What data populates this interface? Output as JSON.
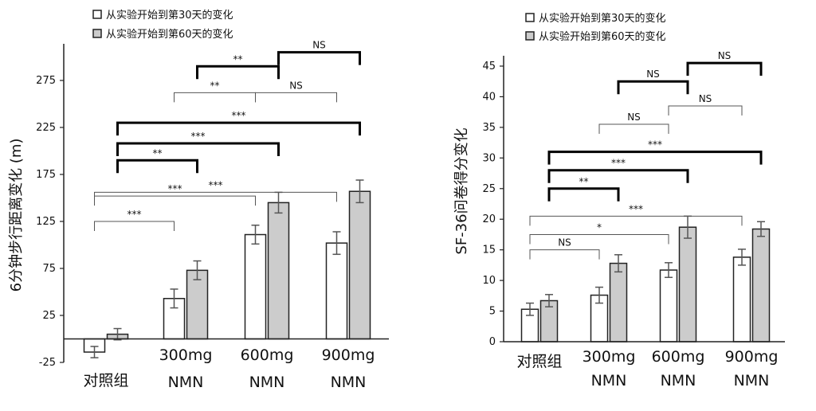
{
  "chart_data": [
    {
      "type": "bar",
      "ylabel": "6分钟步行距离变化 (m)",
      "categories": [
        [
          "对照组"
        ],
        [
          "300mg",
          "NMN"
        ],
        [
          "600mg",
          "NMN"
        ],
        [
          "900mg",
          "NMN"
        ]
      ],
      "ylim": [
        -25,
        300
      ],
      "yticks": [
        -25,
        25,
        75,
        125,
        175,
        225,
        275
      ],
      "legend_position": "top",
      "series": [
        {
          "name": "从实验开始到第30天的变化",
          "color": "#ffffff",
          "values": [
            -14,
            43,
            111,
            102
          ],
          "errors": [
            6,
            10,
            10,
            12
          ]
        },
        {
          "name": "从实验开始到第60天的变化",
          "color": "#cccccc",
          "values": [
            5,
            73,
            145,
            157
          ],
          "errors": [
            6,
            10,
            11,
            12
          ]
        }
      ],
      "comparisons": [
        {
          "label": "***",
          "from": 0,
          "to": 1,
          "level": 125,
          "series": "30d",
          "bold": false
        },
        {
          "label": "***",
          "from": 0,
          "to": 2,
          "level": 152,
          "series": "30d",
          "bold": false
        },
        {
          "label": "***",
          "from": 0,
          "to": 3,
          "level": 156,
          "series": "30d",
          "bold": false
        },
        {
          "label": "**",
          "from": 0,
          "to": 1,
          "level": 190,
          "series": "60d",
          "bold": true
        },
        {
          "label": "***",
          "from": 0,
          "to": 2,
          "level": 208,
          "series": "60d",
          "bold": true
        },
        {
          "label": "***",
          "from": 0,
          "to": 3,
          "level": 230,
          "series": "60d",
          "bold": true
        },
        {
          "label": "**",
          "from": 1,
          "to": 2,
          "level": 262,
          "series": "30d",
          "bold": false
        },
        {
          "label": "NS",
          "from": 2,
          "to": 3,
          "level": 262,
          "series": "30d",
          "bold": false
        },
        {
          "label": "**",
          "from": 1,
          "to": 2,
          "level": 290,
          "series": "60d",
          "bold": true
        },
        {
          "label": "NS",
          "from": 2,
          "to": 3,
          "level": 305,
          "series": "60d",
          "bold": true
        }
      ]
    },
    {
      "type": "bar",
      "ylabel": "SF-36问卷得分变化",
      "categories": [
        [
          "对照组"
        ],
        [
          "300mg",
          "NMN"
        ],
        [
          "600mg",
          "NMN"
        ],
        [
          "900mg",
          "NMN"
        ]
      ],
      "ylim": [
        0,
        45
      ],
      "yticks": [
        0,
        5,
        10,
        15,
        20,
        25,
        30,
        35,
        40,
        45
      ],
      "legend_position": "top",
      "series": [
        {
          "name": "从实验开始到第30天的变化",
          "color": "#ffffff",
          "values": [
            5.3,
            7.6,
            11.7,
            13.8
          ],
          "errors": [
            1.0,
            1.3,
            1.2,
            1.3
          ]
        },
        {
          "name": "从实验开始到第60天的变化",
          "color": "#cccccc",
          "values": [
            6.7,
            12.8,
            18.7,
            18.4
          ],
          "errors": [
            1.0,
            1.4,
            1.8,
            1.2
          ]
        }
      ],
      "comparisons": [
        {
          "label": "NS",
          "from": 0,
          "to": 1,
          "level": 15,
          "series": "30d",
          "bold": false
        },
        {
          "label": "*",
          "from": 0,
          "to": 2,
          "level": 17.5,
          "series": "30d",
          "bold": false
        },
        {
          "label": "***",
          "from": 0,
          "to": 3,
          "level": 20.5,
          "series": "30d",
          "bold": false
        },
        {
          "label": "**",
          "from": 0,
          "to": 1,
          "level": 25,
          "series": "60d",
          "bold": true
        },
        {
          "label": "***",
          "from": 0,
          "to": 2,
          "level": 28,
          "series": "60d",
          "bold": true
        },
        {
          "label": "***",
          "from": 0,
          "to": 3,
          "level": 31,
          "series": "60d",
          "bold": true
        },
        {
          "label": "NS",
          "from": 1,
          "to": 2,
          "level": 35.5,
          "series": "30d",
          "bold": false
        },
        {
          "label": "NS",
          "from": 2,
          "to": 3,
          "level": 38.5,
          "series": "30d",
          "bold": false
        },
        {
          "label": "NS",
          "from": 1,
          "to": 2,
          "level": 42.5,
          "series": "60d",
          "bold": true
        },
        {
          "label": "NS",
          "from": 2,
          "to": 3,
          "level": 45.5,
          "series": "60d",
          "bold": true
        }
      ]
    }
  ]
}
